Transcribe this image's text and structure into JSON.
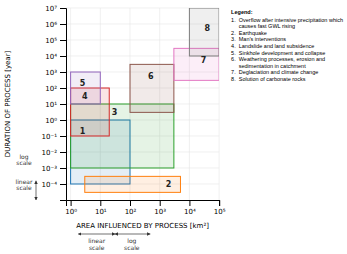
{
  "chart_data": {
    "type": "rectangles",
    "xlabel": "AREA INFLUENCED BY PROCESS [km²]",
    "ylabel": "DURATION OF PROCESS [year]",
    "log": true,
    "grid": true,
    "xlim": [
      0.7,
      100000
    ],
    "ylim": [
      1e-05,
      10000000
    ],
    "xticks": [
      {
        "value": 1,
        "label": "10⁰"
      },
      {
        "value": 10,
        "label": "10¹"
      },
      {
        "value": 100,
        "label": "10²"
      },
      {
        "value": 1000,
        "label": "10³"
      },
      {
        "value": 10000,
        "label": "10⁴"
      },
      {
        "value": 100000,
        "label": "10⁵"
      }
    ],
    "yticks": [
      {
        "value": 0.0001,
        "label": "10⁻⁴"
      },
      {
        "value": 0.001,
        "label": "10⁻³"
      },
      {
        "value": 0.01,
        "label": "10⁻²"
      },
      {
        "value": 0.1,
        "label": "10⁻¹"
      },
      {
        "value": 1,
        "label": "10⁰"
      },
      {
        "value": 10,
        "label": "10¹"
      },
      {
        "value": 100,
        "label": "10²"
      },
      {
        "value": 1000,
        "label": "10³"
      },
      {
        "value": 10000,
        "label": "10⁴"
      },
      {
        "value": 100000,
        "label": "10⁵"
      },
      {
        "value": 1000000,
        "label": "10⁶"
      },
      {
        "value": 10000000,
        "label": "10⁷"
      }
    ],
    "rectangles": [
      {
        "label": "1",
        "x0": 1,
        "x1": 100,
        "y0": 0.0001,
        "y1": 1,
        "label_x": 2.5,
        "label_y": 0.2
      },
      {
        "label": "2",
        "x0": 3,
        "x1": 5000,
        "y0": 3e-05,
        "y1": 0.0003,
        "label_x": 2000,
        "label_y": 0.0001
      },
      {
        "label": "3",
        "x0": 1,
        "x1": 3000,
        "y0": 0.001,
        "y1": 10,
        "label_x": 30,
        "label_y": 3
      },
      {
        "label": "4",
        "x0": 1,
        "x1": 20,
        "y0": 0.1,
        "y1": 100,
        "label_x": 3,
        "label_y": 30
      },
      {
        "label": "5",
        "x0": 1,
        "x1": 10,
        "y0": 10,
        "y1": 1000,
        "label_x": 2.5,
        "label_y": 200
      },
      {
        "label": "6",
        "x0": 100,
        "x1": 3000,
        "y0": 3,
        "y1": 3000,
        "label_x": 500,
        "label_y": 500
      },
      {
        "label": "7",
        "x0": 3000,
        "x1": 100000,
        "y0": 300,
        "y1": 30000,
        "label_x": 30000,
        "label_y": 5000
      },
      {
        "label": "8",
        "x0": 10000,
        "x1": 100000,
        "y0": 10000,
        "y1": 10000000,
        "label_x": 40000,
        "label_y": 500000
      }
    ],
    "legend_title": "Legend:",
    "legend_items": [
      "1.  Overflow after intensive precipitation which",
      "     causes fast GWL rising",
      "2.  Earthquake",
      "3.  Man’s interventions",
      "4.  Landslide and land subsidence",
      "5.  Sinkhole development and collapse",
      "6.  Weathering processes, erosion and",
      "     sedimentation in catchment",
      "7.  Deglaciation and climate change",
      "8.  Solution of carbonate rocks"
    ],
    "annotations": [
      "linear\nscale",
      "log\nscale",
      "linear\nscale",
      "log\nscale"
    ]
  }
}
